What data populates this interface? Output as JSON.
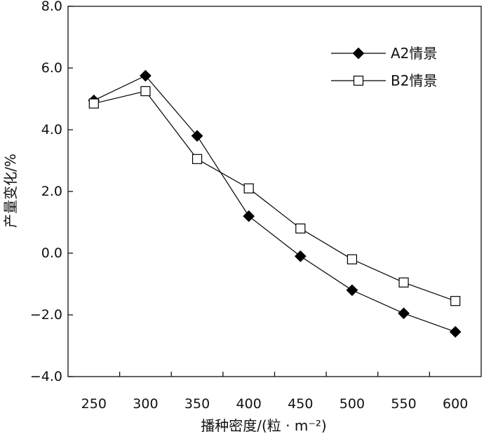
{
  "chart_data": {
    "type": "line",
    "title": "",
    "xlabel": "播种密度/(粒 · m⁻²)",
    "ylabel": "产量变化/%",
    "x": [
      250,
      300,
      350,
      400,
      450,
      500,
      550,
      600
    ],
    "x_tick_labels": [
      "250",
      "300",
      "350",
      "400",
      "450",
      "500",
      "550",
      "600"
    ],
    "y_tick_labels": [
      "8.0",
      "6.0",
      "4.0",
      "2.0",
      "0.0",
      "−2.0",
      "−4.0"
    ],
    "y_ticks": [
      8,
      6,
      4,
      2,
      0,
      -2,
      -4
    ],
    "ylim": [
      -4,
      8
    ],
    "xlim": [
      225,
      625
    ],
    "grid": false,
    "legend_position": "top-right",
    "series": [
      {
        "name": "A2情景",
        "marker": "filled-diamond",
        "color": "#000000",
        "values": [
          4.95,
          5.75,
          3.8,
          1.2,
          -0.1,
          -1.2,
          -1.95,
          -2.55
        ]
      },
      {
        "name": "B2情景",
        "marker": "open-square",
        "color": "#000000",
        "values": [
          4.85,
          5.25,
          3.05,
          2.1,
          0.8,
          -0.2,
          -0.95,
          -1.55
        ]
      }
    ]
  }
}
